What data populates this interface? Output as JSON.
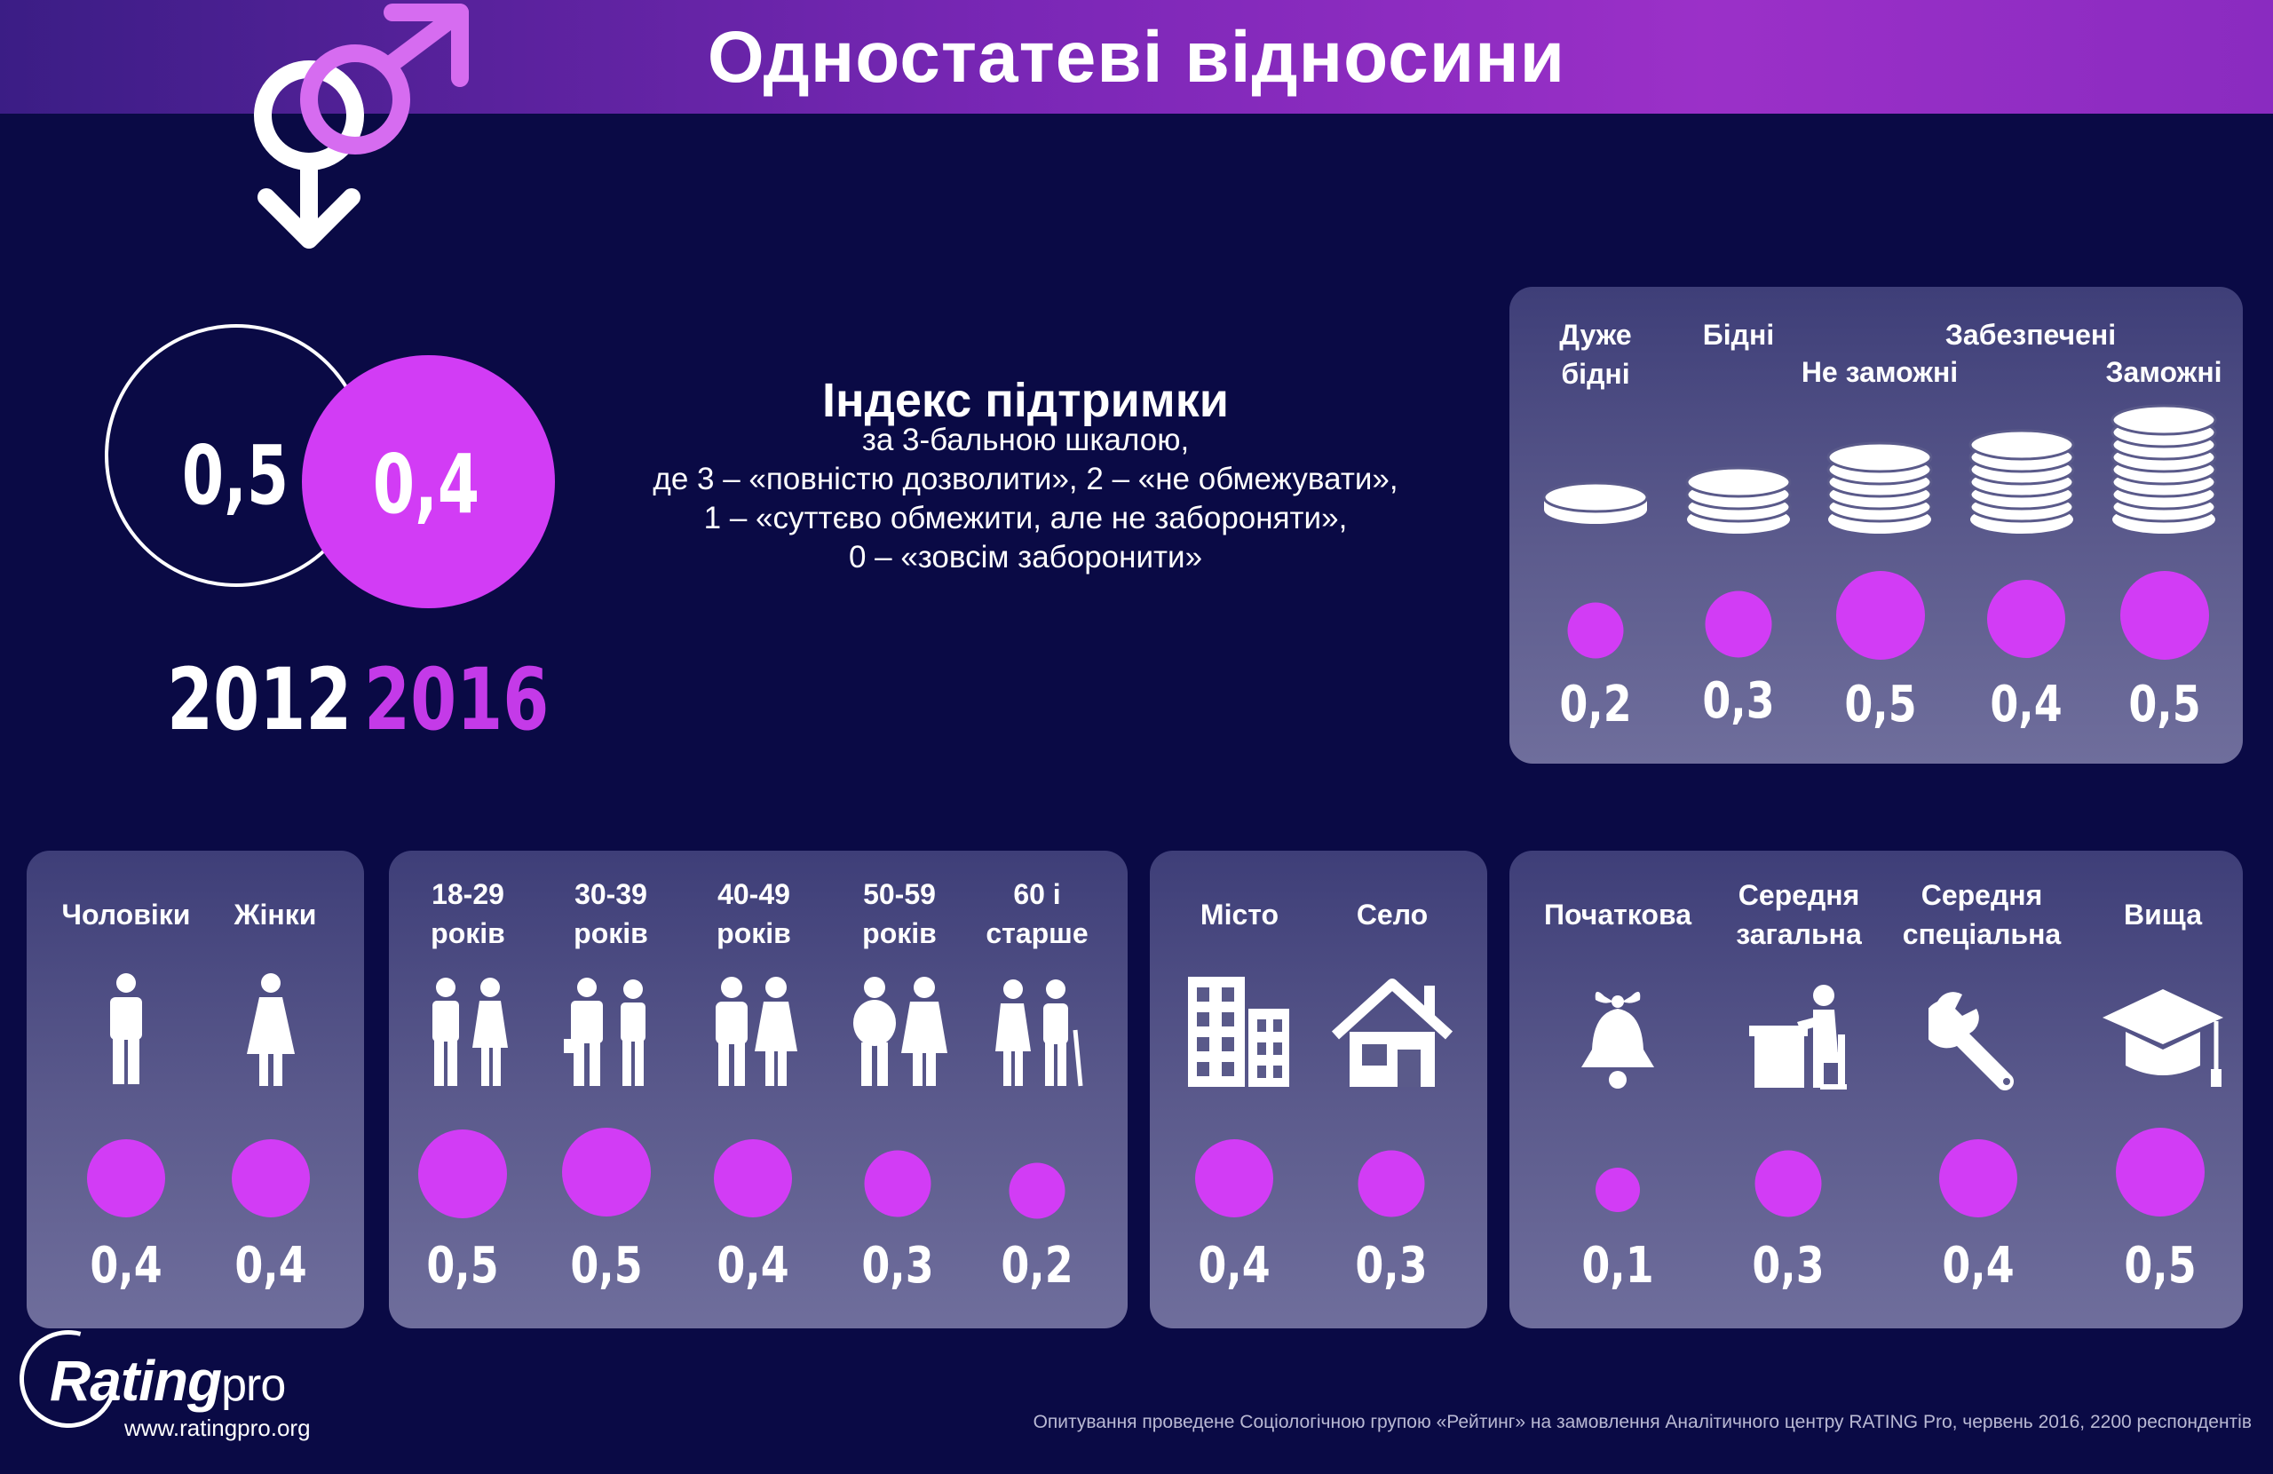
{
  "title": "Одностатеві відносини",
  "colors": {
    "accent": "#d23cf5",
    "background": "#0a0a45"
  },
  "overall": [
    {
      "year": "2012",
      "value": "0,5",
      "num": 0.5
    },
    {
      "year": "2016",
      "value": "0,4",
      "num": 0.4
    }
  ],
  "index": {
    "title": "Індекс підтримки",
    "lines": [
      "за 3-бальною шкалою,",
      "де 3 – «повністю дозволити», 2 – «не обмежувати»,",
      "1 – «суттєво обмежити, але не забороняти»,",
      "0 – «зовсім заборонити»"
    ]
  },
  "groups": {
    "wealth": {
      "icon": "coins-stack-icon",
      "items": [
        {
          "label": "Дуже бідні",
          "value": "0,2",
          "num": 0.2
        },
        {
          "label": "Бідні",
          "value": "0,3",
          "num": 0.3
        },
        {
          "label": "Не заможні",
          "value": "0,5",
          "num": 0.5
        },
        {
          "label": "Забезпечені",
          "value": "0,4",
          "num": 0.4
        },
        {
          "label": "Заможні",
          "value": "0,5",
          "num": 0.5
        }
      ]
    },
    "gender": {
      "items": [
        {
          "label": "Чоловіки",
          "value": "0,4",
          "num": 0.4,
          "icon": "man-icon"
        },
        {
          "label": "Жінки",
          "value": "0,4",
          "num": 0.4,
          "icon": "woman-icon"
        }
      ]
    },
    "age": {
      "items": [
        {
          "label": "18-29 років",
          "value": "0,5",
          "num": 0.5,
          "icon": "young-couple-icon"
        },
        {
          "label": "30-39 років",
          "value": "0,5",
          "num": 0.5,
          "icon": "business-couple-icon"
        },
        {
          "label": "40-49 років",
          "value": "0,4",
          "num": 0.4,
          "icon": "adult-couple-icon"
        },
        {
          "label": "50-59 років",
          "value": "0,3",
          "num": 0.3,
          "icon": "mature-couple-icon"
        },
        {
          "label": "60 і старше",
          "value": "0,2",
          "num": 0.2,
          "icon": "elderly-couple-icon"
        }
      ]
    },
    "settlement": {
      "items": [
        {
          "label": "Місто",
          "value": "0,4",
          "num": 0.4,
          "icon": "city-building-icon"
        },
        {
          "label": "Село",
          "value": "0,3",
          "num": 0.3,
          "icon": "house-icon"
        }
      ]
    },
    "education": {
      "items": [
        {
          "label": "Початкова",
          "value": "0,1",
          "num": 0.1,
          "icon": "school-bell-icon"
        },
        {
          "label": "Середня загальна",
          "value": "0,3",
          "num": 0.3,
          "icon": "student-desk-icon"
        },
        {
          "label": "Середня спеціальна",
          "value": "0,4",
          "num": 0.4,
          "icon": "wrench-icon"
        },
        {
          "label": "Вища",
          "value": "0,5",
          "num": 0.5,
          "icon": "graduation-cap-icon"
        }
      ]
    }
  },
  "footer": {
    "brand": "Rating",
    "brand_suffix": "pro",
    "url": "www.ratingpro.org",
    "note": "Опитування проведене Соціологічною групою «Рейтинг» на замовлення Аналітичного центру RATING Pro, червень 2016, 2200 респондентів"
  }
}
